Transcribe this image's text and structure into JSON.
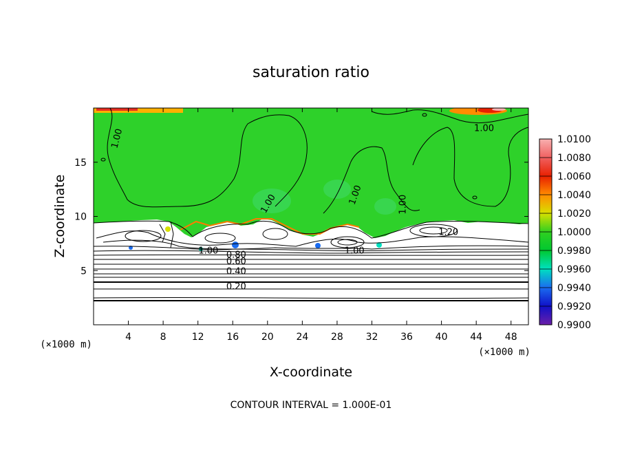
{
  "chart_data": {
    "type": "heatmap",
    "title": "saturation ratio",
    "xlabel": "X-coordinate",
    "ylabel": "Z-coordinate",
    "x_unit": "(×1000 m)",
    "xlim": [
      0,
      50
    ],
    "ylim": [
      0,
      20
    ],
    "x_ticks": [
      4,
      8,
      12,
      16,
      20,
      24,
      28,
      32,
      36,
      40,
      44,
      48
    ],
    "y_ticks": [
      5,
      10,
      15
    ],
    "colorbar": {
      "levels": [
        "0.9900",
        "0.9920",
        "0.9940",
        "0.9960",
        "0.9980",
        "1.0000",
        "1.0020",
        "1.0040",
        "1.0060",
        "1.0080",
        "1.0100"
      ],
      "colors": [
        "#6a1fa8",
        "#1010c8",
        "#1a6cf0",
        "#00e0c0",
        "#00c830",
        "#30d020",
        "#d8e000",
        "#ff8c00",
        "#e82000",
        "#f06060",
        "#f8b0b0"
      ]
    },
    "contour_labels": [
      {
        "text": "1.00",
        "x": 30,
        "y": 6.9
      },
      {
        "text": "1.00",
        "x": 44.9,
        "y": 18.2
      },
      {
        "text": "1.00",
        "x": 2.6,
        "y": 17.2,
        "rotate": -75
      },
      {
        "text": "1.00",
        "x": 20,
        "y": 11.2,
        "rotate": -60
      },
      {
        "text": "1.00",
        "x": 30,
        "y": 12,
        "rotate": -70
      },
      {
        "text": "1.00",
        "x": 35.5,
        "y": 11.1,
        "rotate": -90
      },
      {
        "text": "1.20",
        "x": 40.8,
        "y": 8.6
      },
      {
        "text": "1.00",
        "x": 13.2,
        "y": 6.9
      },
      {
        "text": "0.80",
        "x": 16.4,
        "y": 6.5
      },
      {
        "text": "0.60",
        "x": 16.4,
        "y": 5.9
      },
      {
        "text": "0.40",
        "x": 16.4,
        "y": 5.0
      },
      {
        "text": "0.20",
        "x": 16.4,
        "y": 3.6
      }
    ],
    "footnote": "CONTOUR INTERVAL = 1.000E-01"
  }
}
